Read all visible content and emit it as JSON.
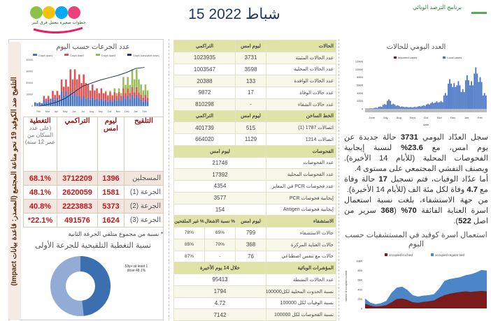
{
  "header": {
    "date": "15 شباط 2022",
    "program": "برنامج الترصد الوبائي",
    "campaign_slogan": "خطوات صغيرة بتعمل فرق كبير"
  },
  "left": {
    "side_label": "التلقيح ضد الكوفيد 19 نحو مناعة المجتمع (المصدر: قاعدة بيانات Impact)",
    "doses_chart_title": "عدد الجرعات حسب اليوم",
    "vaccine_table": {
      "headers": [
        "التلقيح",
        "ليوم امس",
        "التراكمي",
        "التغطية"
      ],
      "coverage_note": "(على عدد السكان من عمر 12 سنة)",
      "rows": [
        [
          "المسجلين",
          "1396",
          "3712209",
          "68.1%"
        ],
        [
          "الجرعة (1)",
          "1581",
          "2620059",
          "48.1%"
        ],
        [
          "الجرعة (2)",
          "5373",
          "2223883",
          "40.8%"
        ],
        [
          "الجرعة (3)",
          "1624",
          "491576",
          "22.1%*"
        ]
      ]
    },
    "footnote": "* نسبة من مجموع متلقي الجرعة الثانية",
    "donut_title": "نسبة التغطية التلقيحية للجرعة الأولى",
    "donut_label": "53y+:at least 1 dose 48.1%"
  },
  "chart_data": [
    {
      "type": "bar",
      "title": "عدد الجرعات حسب اليوم",
      "series": [
        {
          "name": "Graph dose1"
        },
        {
          "name": "Graph dose2"
        },
        {
          "name": "Graph dose3"
        },
        {
          "name": "Graph cumulative dose1"
        }
      ],
      "categories": [
        "Feb",
        "Mar",
        "Apr",
        "May",
        "Jun",
        "Jul",
        "Aug",
        "Sep",
        "Oct",
        "Nov",
        "Dec",
        "Jan",
        "Feb"
      ],
      "dose1": [
        3000,
        5000,
        7000,
        12000,
        11000,
        8000,
        7000,
        6000,
        5000,
        6000,
        8000,
        9000,
        5000
      ],
      "dose2": [
        0,
        3000,
        5000,
        9000,
        18000,
        17000,
        10000,
        8000,
        6000,
        5000,
        6000,
        6000,
        4000
      ],
      "dose3": [
        0,
        0,
        0,
        0,
        0,
        0,
        0,
        0,
        1000,
        3000,
        9000,
        14000,
        8000
      ],
      "cumulative_dose1": [
        0,
        100000,
        250000,
        500000,
        900000,
        1300000,
        1500000,
        1700000,
        1850000,
        2000000,
        2200000,
        2450000,
        2520000
      ],
      "ylim": [
        0,
        40000
      ],
      "y2lim": [
        0,
        3000000
      ]
    },
    {
      "type": "bar",
      "title": "العدد اليومي للحالات",
      "xlabel": "date",
      "series": [
        {
          "name": "Imported cases",
          "color": "#7b1c1c"
        },
        {
          "name": "Local cases",
          "color": "#4472c4"
        }
      ],
      "categories": [
        "June",
        "July",
        "Aug",
        "Sept",
        "Oct",
        "Nov",
        "Dec",
        "Jan",
        "Feb"
      ],
      "local": [
        100,
        150,
        300,
        600,
        1200,
        2400,
        1300,
        900,
        600,
        500,
        450,
        500,
        700,
        900,
        1300,
        1700,
        1900,
        2000,
        4000,
        7500,
        6500,
        7000,
        5000,
        8500,
        7000,
        10500,
        8000,
        4000
      ],
      "ylim": [
        0,
        12000
      ]
    },
    {
      "type": "area",
      "title": "استعمال اسرة كوفيد في المستشفيات حسب اليوم",
      "ylabel": "number of occupied icu beds",
      "series": [
        {
          "name": "occupied icu bed",
          "color": "#7b1c1c"
        },
        {
          "name": "occupied regular bed",
          "color": "#4a86c8"
        }
      ],
      "icu": [
        100,
        60,
        40,
        50,
        70,
        130,
        200,
        210,
        180,
        130,
        120,
        140,
        150,
        170,
        230,
        280,
        310,
        330,
        350,
        360,
        350,
        360,
        370,
        360
      ],
      "total": [
        210,
        120,
        90,
        110,
        160,
        330,
        440,
        460,
        390,
        280,
        250,
        270,
        280,
        300,
        420,
        580,
        620,
        640,
        660,
        700,
        720,
        760,
        810,
        800
      ],
      "ylim": [
        0,
        1000
      ]
    }
  ],
  "middle": {
    "rows": [
      {
        "hd": true,
        "c": [
          "الحالات",
          "ليوم امس",
          "التراكمي"
        ]
      },
      {
        "c": [
          "عدد الحالات المثبتة",
          "3731",
          "1023935"
        ]
      },
      {
        "c": [
          "عدد الحالات المحلية",
          "3598",
          "1003547"
        ]
      },
      {
        "c": [
          "عدد الحالات الوافدة",
          "133",
          "20388"
        ]
      },
      {
        "c": [
          "عدد حالات الوفاة",
          "17",
          "9872"
        ]
      },
      {
        "c": [
          "عدد حالات الشفاء",
          "-",
          "810298"
        ]
      },
      {
        "hd": true,
        "c": [
          "الخط الساخن",
          "ليوم امس",
          "التراكمي"
        ]
      },
      {
        "c": [
          "اتصالات 1787 (1)",
          "515",
          "401739"
        ]
      },
      {
        "c": [
          "اتصالات 1214",
          "1129",
          "664020"
        ]
      },
      {
        "hd": true,
        "c": [
          "الفحوصات",
          "ليوم امس"
        ]
      },
      {
        "c": [
          "عدد الفحوصات",
          "21746"
        ]
      },
      {
        "c": [
          "عدد الفحوصات المحلية",
          "17392"
        ]
      },
      {
        "c": [
          "عدد فحوصات PCR في المعابر",
          "4354"
        ]
      },
      {
        "c": [
          "إيجابية فحوصات PCR",
          "3577"
        ]
      },
      {
        "c": [
          "إيجابية فحوصات Antigen",
          "154"
        ]
      },
      {
        "hd": true,
        "c": [
          "الاستشفاء",
          "ليوم امس",
          "% نسبة الاشغال",
          "% غير الملقحين"
        ]
      },
      {
        "c": [
          "حالات الاستشفاء",
          "799",
          "65%",
          "78%"
        ]
      },
      {
        "c": [
          "حالات العناية المركزة",
          "368",
          "70%",
          "85%"
        ]
      },
      {
        "c": [
          "حالات مع تنفس اصطناعي",
          "76",
          "-",
          "87%"
        ]
      },
      {
        "hd": true,
        "c": [
          "المؤشرات الوبائية",
          "خلال 14 يوم الأخيرة"
        ]
      },
      {
        "c": [
          "عدد الحالات النشطة",
          "95413"
        ]
      },
      {
        "c": [
          "نسبة الحدوث المحلية لكل100000",
          "1794"
        ]
      },
      {
        "c": [
          "نسبة الوفيات لكل 100000",
          "4.72"
        ]
      },
      {
        "c": [
          "نسبة الفحوصات لكل 100000",
          "7142"
        ]
      }
    ]
  },
  "right": {
    "p1": [
      "سجل العدّاد اليومي ",
      "3731",
      " حالة جديدة عن يوم امس، مع ",
      "23.6%",
      " لنسبة إيجابية الفحوصات المحلية (للأيام 14 الأخيرة). ويصنف التفشي المجتمعي على مستوى 4."
    ],
    "p2": [
      "أما عدّاد الوفيات، فتم تسجيل ",
      "17",
      " حالة وفاة مع ",
      "4.7",
      " وفاة لكل مئة الف (للأيام 14 الأخيرة)."
    ],
    "p3": [
      "من جهة الاستشفاء، بلغت نسبة استعمال اسرة العناية الفائقة ",
      "70%",
      " (",
      "368",
      " سرير من اصل ",
      "522",
      ")."
    ]
  }
}
